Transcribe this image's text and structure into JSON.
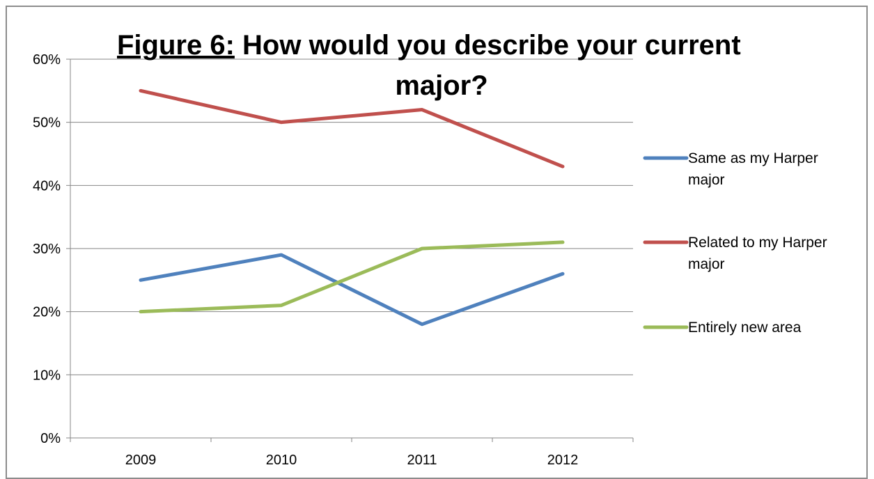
{
  "chart_data": {
    "type": "line",
    "title": {
      "prefix": "Figure 6:",
      "line1_rest": " How would you describe your current",
      "line2": "major?"
    },
    "categories": [
      "2009",
      "2010",
      "2011",
      "2012"
    ],
    "y_ticks": [
      "0%",
      "10%",
      "20%",
      "30%",
      "40%",
      "50%",
      "60%"
    ],
    "ylim": [
      0,
      60
    ],
    "grid": true,
    "legend_position": "right",
    "series": [
      {
        "name": "Same as my Harper major",
        "legend_lines": [
          "Same as my Harper",
          "major"
        ],
        "color": "#4f81bd",
        "values": [
          25,
          29,
          18,
          26
        ]
      },
      {
        "name": "Related to my Harper major",
        "legend_lines": [
          "Related to my Harper",
          "major"
        ],
        "color": "#c0504d",
        "values": [
          55,
          50,
          52,
          43
        ]
      },
      {
        "name": "Entirely new area",
        "legend_lines": [
          "Entirely new area"
        ],
        "color": "#9bbb59",
        "values": [
          20,
          21,
          30,
          31
        ]
      }
    ]
  }
}
